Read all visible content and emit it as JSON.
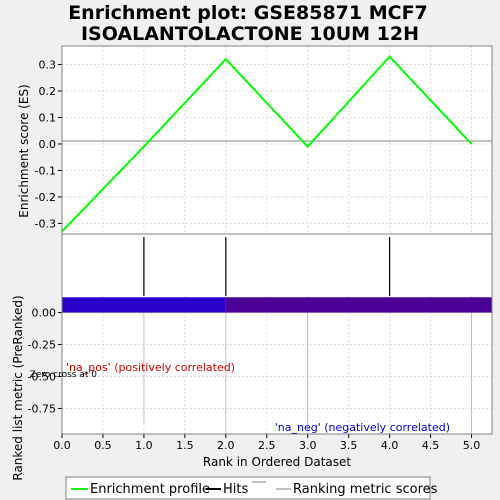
{
  "title_line1": "Enrichment plot: GSE85871 MCF7",
  "title_line2": "ISOALANTOLACTONE 10UM 12H",
  "colors": {
    "es_line": "#00ff00",
    "hits": "#000000",
    "bar_pos": "#2a00cc",
    "bar_neg": "#4a0099",
    "grid": "#dcdcdc",
    "ranking_line": "#c0c0c0"
  },
  "chart_data": [
    {
      "type": "line",
      "name": "enrichment-score-plot",
      "x": [
        0,
        1,
        2,
        3,
        4,
        5
      ],
      "y": [
        -0.33,
        -0.01,
        0.32,
        -0.01,
        0.33,
        0.0
      ],
      "ylabel": "Enrichment score (ES)",
      "ylim": [
        -0.34,
        0.37
      ],
      "yticks": [
        "0.3",
        "0.2",
        "0.1",
        "0.0",
        "-0.1",
        "-0.2",
        "-0.3"
      ],
      "ytick_values": [
        0.3,
        0.2,
        0.1,
        0.0,
        -0.1,
        -0.2,
        -0.3
      ],
      "xlim": [
        0,
        5.25
      ],
      "grid": true
    },
    {
      "type": "bar",
      "name": "hits-strip",
      "hits": [
        1,
        2,
        4
      ]
    },
    {
      "type": "area",
      "name": "ranked-list-metric",
      "ylabel": "Ranked list metric (PreRanked)",
      "xlabel": "Rank in Ordered Dataset",
      "xlim": [
        0,
        5.25
      ],
      "ylim": [
        -0.95,
        0.13
      ],
      "xticks": [
        "0.0",
        "0.5",
        "1.0",
        "1.5",
        "2.0",
        "2.5",
        "3.0",
        "3.5",
        "4.0",
        "4.5",
        "5.0"
      ],
      "xtick_values": [
        0,
        0.5,
        1,
        1.5,
        2,
        2.5,
        3,
        3.5,
        4,
        4.5,
        5
      ],
      "yticks": [
        "0.00",
        "-0.25",
        "-0.50",
        "-0.75"
      ],
      "ytick_values": [
        0,
        -0.25,
        -0.5,
        -0.75
      ],
      "bar_segments": [
        {
          "from": 0,
          "to": 2,
          "value": 0.12,
          "color_key": "bar_pos"
        },
        {
          "from": 2,
          "to": 5.25,
          "value": 0.12,
          "color_key": "bar_neg"
        }
      ],
      "ranking_lines": [
        1,
        2,
        3,
        5
      ],
      "pos_label": "'na_pos' (positively correlated)",
      "neg_label": "'na_neg' (negatively correlated)",
      "zero_cross_label": "Zero cross at 0",
      "grid": true
    }
  ],
  "legend": {
    "items": [
      {
        "label": "Enrichment profile",
        "color": "#00ff00"
      },
      {
        "label": "Hits",
        "color": "#000000"
      },
      {
        "label": "Ranking metric scores",
        "color": "#c0c0c0"
      }
    ]
  }
}
